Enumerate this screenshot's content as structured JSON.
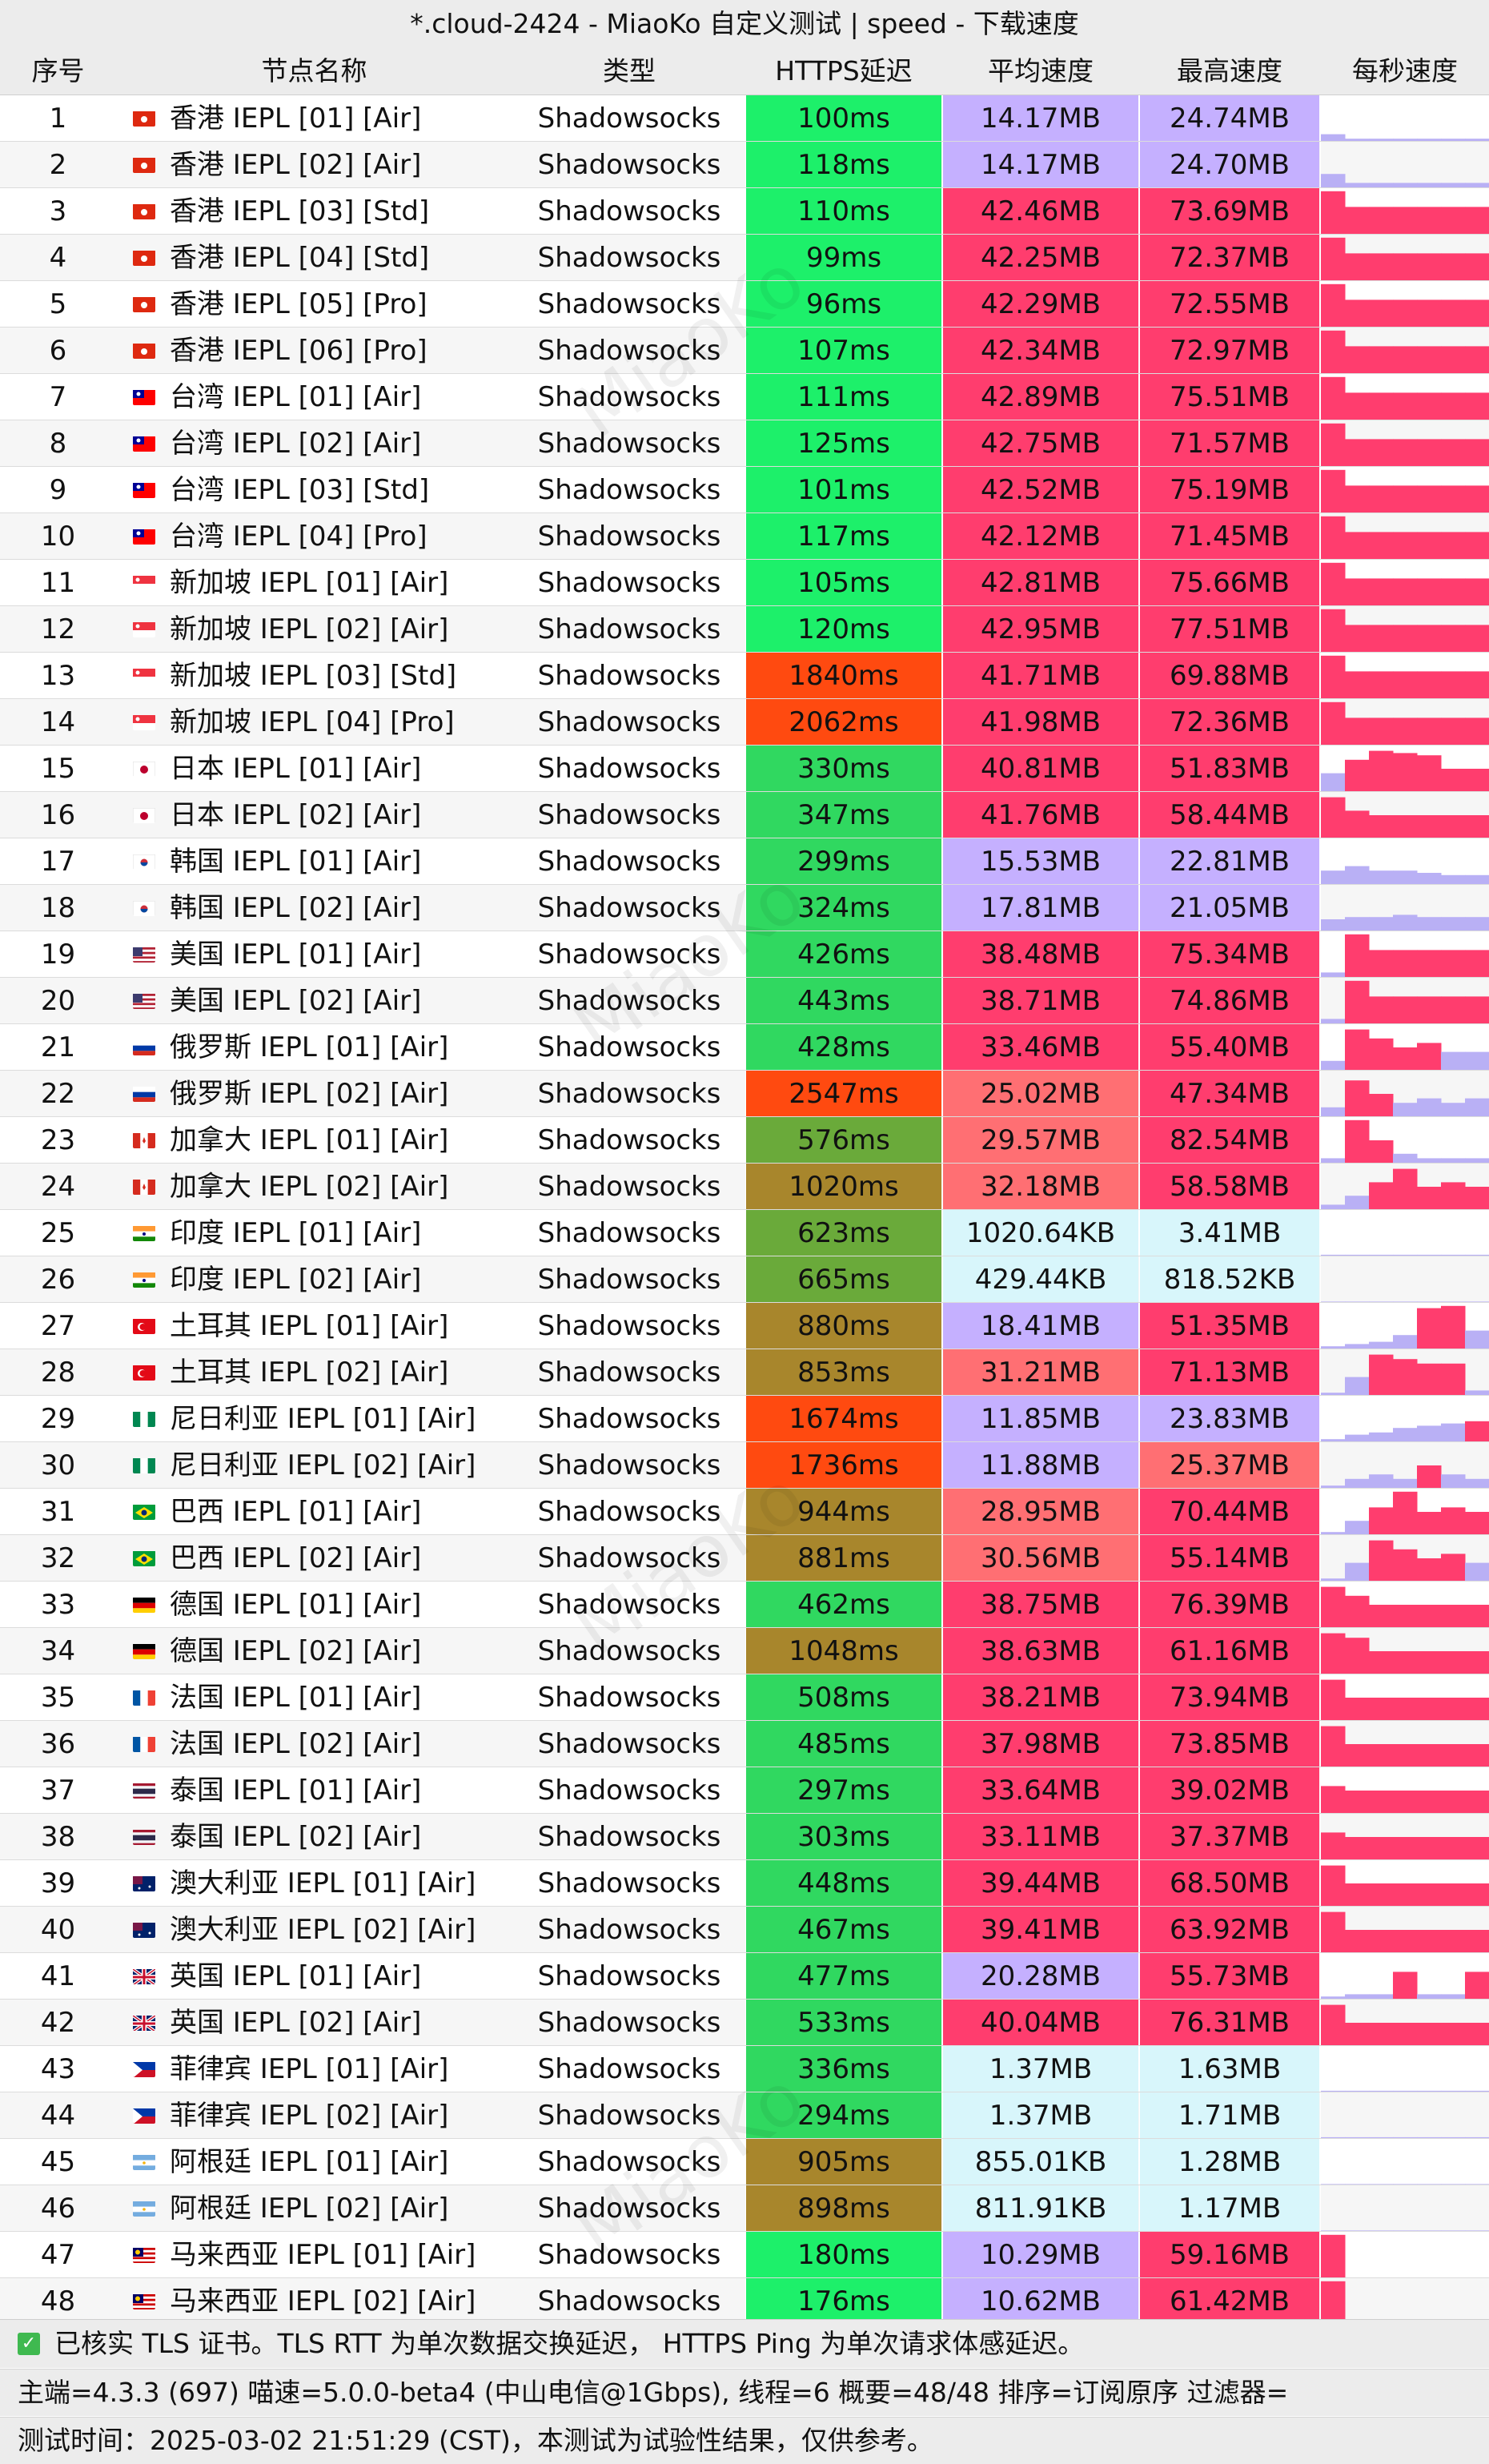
{
  "title": "*.cloud-2424 - MiaoKo 自定义测试 | speed - 下载速度",
  "columns": {
    "index": "序号",
    "name": "节点名称",
    "type": "类型",
    "latency": "HTTPS延迟",
    "avg": "平均速度",
    "max": "最高速度",
    "per_second": "每秒速度"
  },
  "watermark": "MiaoKo",
  "rows": [
    {
      "idx": "1",
      "flag": "hk",
      "name": "香港 IEPL [01] [Air]",
      "type": "Shadowsocks",
      "latency": "100ms",
      "avg": "14.17MB",
      "max": "24.74MB",
      "spark": [
        0.15,
        0.05,
        0.05,
        0.05,
        0.05,
        0.05,
        0.05
      ]
    },
    {
      "idx": "2",
      "flag": "hk",
      "name": "香港 IEPL [02] [Air]",
      "type": "Shadowsocks",
      "latency": "118ms",
      "avg": "14.17MB",
      "max": "24.70MB",
      "spark": [
        0.3,
        0.1,
        0.1,
        0.1,
        0.1,
        0.1,
        0.1
      ]
    },
    {
      "idx": "3",
      "flag": "hk",
      "name": "香港 IEPL [03] [Std]",
      "type": "Shadowsocks",
      "latency": "110ms",
      "avg": "42.46MB",
      "max": "73.69MB",
      "spark": [
        0.95,
        0.6,
        0.6,
        0.6,
        0.6,
        0.6,
        0.6
      ]
    },
    {
      "idx": "4",
      "flag": "hk",
      "name": "香港 IEPL [04] [Std]",
      "type": "Shadowsocks",
      "latency": "99ms",
      "avg": "42.25MB",
      "max": "72.37MB",
      "spark": [
        0.95,
        0.6,
        0.6,
        0.6,
        0.6,
        0.6,
        0.6
      ]
    },
    {
      "idx": "5",
      "flag": "hk",
      "name": "香港 IEPL [05] [Pro]",
      "type": "Shadowsocks",
      "latency": "96ms",
      "avg": "42.29MB",
      "max": "72.55MB",
      "spark": [
        0.95,
        0.6,
        0.6,
        0.6,
        0.6,
        0.6,
        0.6
      ]
    },
    {
      "idx": "6",
      "flag": "hk",
      "name": "香港 IEPL [06] [Pro]",
      "type": "Shadowsocks",
      "latency": "107ms",
      "avg": "42.34MB",
      "max": "72.97MB",
      "spark": [
        0.95,
        0.6,
        0.6,
        0.6,
        0.6,
        0.6,
        0.6
      ]
    },
    {
      "idx": "7",
      "flag": "tw",
      "name": "台湾 IEPL [01] [Air]",
      "type": "Shadowsocks",
      "latency": "111ms",
      "avg": "42.89MB",
      "max": "75.51MB",
      "spark": [
        0.95,
        0.6,
        0.6,
        0.6,
        0.6,
        0.6,
        0.6
      ]
    },
    {
      "idx": "8",
      "flag": "tw",
      "name": "台湾 IEPL [02] [Air]",
      "type": "Shadowsocks",
      "latency": "125ms",
      "avg": "42.75MB",
      "max": "71.57MB",
      "spark": [
        0.95,
        0.6,
        0.6,
        0.6,
        0.6,
        0.6,
        0.6
      ]
    },
    {
      "idx": "9",
      "flag": "tw",
      "name": "台湾 IEPL [03] [Std]",
      "type": "Shadowsocks",
      "latency": "101ms",
      "avg": "42.52MB",
      "max": "75.19MB",
      "spark": [
        0.95,
        0.6,
        0.6,
        0.6,
        0.6,
        0.6,
        0.6
      ]
    },
    {
      "idx": "10",
      "flag": "tw",
      "name": "台湾 IEPL [04] [Pro]",
      "type": "Shadowsocks",
      "latency": "117ms",
      "avg": "42.12MB",
      "max": "71.45MB",
      "spark": [
        0.95,
        0.6,
        0.6,
        0.6,
        0.6,
        0.6,
        0.6
      ]
    },
    {
      "idx": "11",
      "flag": "sg",
      "name": "新加坡 IEPL [01] [Air]",
      "type": "Shadowsocks",
      "latency": "105ms",
      "avg": "42.81MB",
      "max": "75.66MB",
      "spark": [
        0.95,
        0.6,
        0.6,
        0.6,
        0.6,
        0.6,
        0.6
      ]
    },
    {
      "idx": "12",
      "flag": "sg",
      "name": "新加坡 IEPL [02] [Air]",
      "type": "Shadowsocks",
      "latency": "120ms",
      "avg": "42.95MB",
      "max": "77.51MB",
      "spark": [
        0.95,
        0.6,
        0.6,
        0.6,
        0.6,
        0.6,
        0.6
      ]
    },
    {
      "idx": "13",
      "flag": "sg",
      "name": "新加坡 IEPL [03] [Std]",
      "type": "Shadowsocks",
      "latency": "1840ms",
      "avg": "41.71MB",
      "max": "69.88MB",
      "spark": [
        0.95,
        0.6,
        0.6,
        0.6,
        0.6,
        0.6,
        0.6
      ]
    },
    {
      "idx": "14",
      "flag": "sg",
      "name": "新加坡 IEPL [04] [Pro]",
      "type": "Shadowsocks",
      "latency": "2062ms",
      "avg": "41.98MB",
      "max": "72.36MB",
      "spark": [
        0.95,
        0.6,
        0.6,
        0.6,
        0.6,
        0.6,
        0.6
      ]
    },
    {
      "idx": "15",
      "flag": "jp",
      "name": "日本 IEPL [01] [Air]",
      "type": "Shadowsocks",
      "latency": "330ms",
      "avg": "40.81MB",
      "max": "51.83MB",
      "spark": [
        0.4,
        0.7,
        0.9,
        0.85,
        0.8,
        0.5,
        0.5
      ]
    },
    {
      "idx": "16",
      "flag": "jp",
      "name": "日本 IEPL [02] [Air]",
      "type": "Shadowsocks",
      "latency": "347ms",
      "avg": "41.76MB",
      "max": "58.44MB",
      "spark": [
        0.9,
        0.6,
        0.5,
        0.5,
        0.5,
        0.5,
        0.5
      ]
    },
    {
      "idx": "17",
      "flag": "kr",
      "name": "韩国 IEPL [01] [Air]",
      "type": "Shadowsocks",
      "latency": "299ms",
      "avg": "15.53MB",
      "max": "22.81MB",
      "spark": [
        0.3,
        0.4,
        0.3,
        0.3,
        0.25,
        0.2,
        0.2
      ]
    },
    {
      "idx": "18",
      "flag": "kr",
      "name": "韩国 IEPL [02] [Air]",
      "type": "Shadowsocks",
      "latency": "324ms",
      "avg": "17.81MB",
      "max": "21.05MB",
      "spark": [
        0.25,
        0.3,
        0.3,
        0.35,
        0.3,
        0.3,
        0.3
      ]
    },
    {
      "idx": "19",
      "flag": "us",
      "name": "美国 IEPL [01] [Air]",
      "type": "Shadowsocks",
      "latency": "426ms",
      "avg": "38.48MB",
      "max": "75.34MB",
      "spark": [
        0.1,
        0.95,
        0.6,
        0.6,
        0.6,
        0.6,
        0.6
      ]
    },
    {
      "idx": "20",
      "flag": "us",
      "name": "美国 IEPL [02] [Air]",
      "type": "Shadowsocks",
      "latency": "443ms",
      "avg": "38.71MB",
      "max": "74.86MB",
      "spark": [
        0.1,
        0.95,
        0.6,
        0.6,
        0.6,
        0.6,
        0.6
      ]
    },
    {
      "idx": "21",
      "flag": "ru",
      "name": "俄罗斯 IEPL [01] [Air]",
      "type": "Shadowsocks",
      "latency": "428ms",
      "avg": "33.46MB",
      "max": "55.40MB",
      "spark": [
        0.2,
        0.9,
        0.7,
        0.5,
        0.6,
        0.4,
        0.4
      ]
    },
    {
      "idx": "22",
      "flag": "ru",
      "name": "俄罗斯 IEPL [02] [Air]",
      "type": "Shadowsocks",
      "latency": "2547ms",
      "avg": "25.02MB",
      "max": "47.34MB",
      "spark": [
        0.2,
        0.8,
        0.5,
        0.3,
        0.4,
        0.3,
        0.4
      ]
    },
    {
      "idx": "23",
      "flag": "ca",
      "name": "加拿大 IEPL [01] [Air]",
      "type": "Shadowsocks",
      "latency": "576ms",
      "avg": "29.57MB",
      "max": "82.54MB",
      "spark": [
        0.1,
        0.95,
        0.5,
        0.2,
        0.1,
        0.1,
        0.1
      ]
    },
    {
      "idx": "24",
      "flag": "ca",
      "name": "加拿大 IEPL [02] [Air]",
      "type": "Shadowsocks",
      "latency": "1020ms",
      "avg": "32.18MB",
      "max": "58.58MB",
      "spark": [
        0.1,
        0.3,
        0.6,
        0.9,
        0.5,
        0.6,
        0.5
      ]
    },
    {
      "idx": "25",
      "flag": "in",
      "name": "印度 IEPL [01] [Air]",
      "type": "Shadowsocks",
      "latency": "623ms",
      "avg": "1020.64KB",
      "max": "3.41MB",
      "spark": [
        0.02,
        0.02,
        0.02,
        0.02,
        0.02,
        0.02,
        0.02
      ]
    },
    {
      "idx": "26",
      "flag": "in",
      "name": "印度 IEPL [02] [Air]",
      "type": "Shadowsocks",
      "latency": "665ms",
      "avg": "429.44KB",
      "max": "818.52KB",
      "spark": [
        0.01,
        0.01,
        0.01,
        0.01,
        0.01,
        0.01,
        0.01
      ]
    },
    {
      "idx": "27",
      "flag": "tr",
      "name": "土耳其 IEPL [01] [Air]",
      "type": "Shadowsocks",
      "latency": "880ms",
      "avg": "18.41MB",
      "max": "51.35MB",
      "spark": [
        0.05,
        0.1,
        0.15,
        0.3,
        0.9,
        0.95,
        0.4
      ]
    },
    {
      "idx": "28",
      "flag": "tr",
      "name": "土耳其 IEPL [02] [Air]",
      "type": "Shadowsocks",
      "latency": "853ms",
      "avg": "31.21MB",
      "max": "71.13MB",
      "spark": [
        0.05,
        0.4,
        0.9,
        0.8,
        0.7,
        0.7,
        0.1
      ]
    },
    {
      "idx": "29",
      "flag": "ng",
      "name": "尼日利亚 IEPL [01] [Air]",
      "type": "Shadowsocks",
      "latency": "1674ms",
      "avg": "11.85MB",
      "max": "23.83MB",
      "spark": [
        0.05,
        0.15,
        0.2,
        0.3,
        0.35,
        0.4,
        0.45
      ]
    },
    {
      "idx": "30",
      "flag": "ng",
      "name": "尼日利亚 IEPL [02] [Air]",
      "type": "Shadowsocks",
      "latency": "1736ms",
      "avg": "11.88MB",
      "max": "25.37MB",
      "spark": [
        0.05,
        0.2,
        0.3,
        0.2,
        0.5,
        0.3,
        0.2
      ]
    },
    {
      "idx": "31",
      "flag": "br",
      "name": "巴西 IEPL [01] [Air]",
      "type": "Shadowsocks",
      "latency": "944ms",
      "avg": "28.95MB",
      "max": "70.44MB",
      "spark": [
        0.05,
        0.3,
        0.6,
        0.95,
        0.5,
        0.6,
        0.5
      ]
    },
    {
      "idx": "32",
      "flag": "br",
      "name": "巴西 IEPL [02] [Air]",
      "type": "Shadowsocks",
      "latency": "881ms",
      "avg": "30.56MB",
      "max": "55.14MB",
      "spark": [
        0.05,
        0.4,
        0.9,
        0.7,
        0.5,
        0.6,
        0.4
      ]
    },
    {
      "idx": "33",
      "flag": "de",
      "name": "德国 IEPL [01] [Air]",
      "type": "Shadowsocks",
      "latency": "462ms",
      "avg": "38.75MB",
      "max": "76.39MB",
      "spark": [
        0.9,
        0.7,
        0.5,
        0.5,
        0.5,
        0.5,
        0.5
      ]
    },
    {
      "idx": "34",
      "flag": "de",
      "name": "德国 IEPL [02] [Air]",
      "type": "Shadowsocks",
      "latency": "1048ms",
      "avg": "38.63MB",
      "max": "61.16MB",
      "spark": [
        0.9,
        0.8,
        0.5,
        0.5,
        0.5,
        0.5,
        0.5
      ]
    },
    {
      "idx": "35",
      "flag": "fr",
      "name": "法国 IEPL [01] [Air]",
      "type": "Shadowsocks",
      "latency": "508ms",
      "avg": "38.21MB",
      "max": "73.94MB",
      "spark": [
        0.9,
        0.5,
        0.5,
        0.5,
        0.5,
        0.5,
        0.5
      ]
    },
    {
      "idx": "36",
      "flag": "fr",
      "name": "法国 IEPL [02] [Air]",
      "type": "Shadowsocks",
      "latency": "485ms",
      "avg": "37.98MB",
      "max": "73.85MB",
      "spark": [
        0.9,
        0.5,
        0.5,
        0.5,
        0.5,
        0.5,
        0.5
      ]
    },
    {
      "idx": "37",
      "flag": "th",
      "name": "泰国 IEPL [01] [Air]",
      "type": "Shadowsocks",
      "latency": "297ms",
      "avg": "33.64MB",
      "max": "39.02MB",
      "spark": [
        0.6,
        0.5,
        0.5,
        0.5,
        0.5,
        0.5,
        0.5
      ]
    },
    {
      "idx": "38",
      "flag": "th",
      "name": "泰国 IEPL [02] [Air]",
      "type": "Shadowsocks",
      "latency": "303ms",
      "avg": "33.11MB",
      "max": "37.37MB",
      "spark": [
        0.6,
        0.5,
        0.5,
        0.5,
        0.5,
        0.5,
        0.5
      ]
    },
    {
      "idx": "39",
      "flag": "au",
      "name": "澳大利亚 IEPL [01] [Air]",
      "type": "Shadowsocks",
      "latency": "448ms",
      "avg": "39.44MB",
      "max": "68.50MB",
      "spark": [
        0.9,
        0.5,
        0.5,
        0.5,
        0.5,
        0.5,
        0.5
      ]
    },
    {
      "idx": "40",
      "flag": "au",
      "name": "澳大利亚 IEPL [02] [Air]",
      "type": "Shadowsocks",
      "latency": "467ms",
      "avg": "39.41MB",
      "max": "63.92MB",
      "spark": [
        0.9,
        0.5,
        0.5,
        0.5,
        0.5,
        0.5,
        0.5
      ]
    },
    {
      "idx": "41",
      "flag": "gb",
      "name": "英国 IEPL [01] [Air]",
      "type": "Shadowsocks",
      "latency": "477ms",
      "avg": "20.28MB",
      "max": "55.73MB",
      "spark": [
        0.05,
        0.1,
        0.1,
        0.6,
        0.1,
        0.1,
        0.6
      ]
    },
    {
      "idx": "42",
      "flag": "gb",
      "name": "英国 IEPL [02] [Air]",
      "type": "Shadowsocks",
      "latency": "533ms",
      "avg": "40.04MB",
      "max": "76.31MB",
      "spark": [
        0.9,
        0.5,
        0.5,
        0.5,
        0.5,
        0.5,
        0.5
      ]
    },
    {
      "idx": "43",
      "flag": "ph",
      "name": "菲律宾 IEPL [01] [Air]",
      "type": "Shadowsocks",
      "latency": "336ms",
      "avg": "1.37MB",
      "max": "1.63MB",
      "spark": [
        0.02,
        0.02,
        0.02,
        0.02,
        0.02,
        0.02,
        0.02
      ]
    },
    {
      "idx": "44",
      "flag": "ph",
      "name": "菲律宾 IEPL [02] [Air]",
      "type": "Shadowsocks",
      "latency": "294ms",
      "avg": "1.37MB",
      "max": "1.71MB",
      "spark": [
        0.02,
        0.02,
        0.02,
        0.02,
        0.02,
        0.02,
        0.02
      ]
    },
    {
      "idx": "45",
      "flag": "ar",
      "name": "阿根廷 IEPL [01] [Air]",
      "type": "Shadowsocks",
      "latency": "905ms",
      "avg": "855.01KB",
      "max": "1.28MB",
      "spark": [
        0.01,
        0.01,
        0.01,
        0.01,
        0.01,
        0.01,
        0.01
      ]
    },
    {
      "idx": "46",
      "flag": "ar",
      "name": "阿根廷 IEPL [02] [Air]",
      "type": "Shadowsocks",
      "latency": "898ms",
      "avg": "811.91KB",
      "max": "1.17MB",
      "spark": [
        0.01,
        0.01,
        0.01,
        0.01,
        0.01,
        0.01,
        0.01
      ]
    },
    {
      "idx": "47",
      "flag": "my",
      "name": "马来西亚 IEPL [01] [Air]",
      "type": "Shadowsocks",
      "latency": "180ms",
      "avg": "10.29MB",
      "max": "59.16MB",
      "spark": [
        0.95,
        0.0,
        0.0,
        0.0,
        0.0,
        0.0,
        0.0
      ]
    },
    {
      "idx": "48",
      "flag": "my",
      "name": "马来西亚 IEPL [02] [Air]",
      "type": "Shadowsocks",
      "latency": "176ms",
      "avg": "10.62MB",
      "max": "61.42MB",
      "spark": [
        0.95,
        0.0,
        0.0,
        0.0,
        0.0,
        0.0,
        0.0
      ]
    }
  ],
  "footer": {
    "line1": "已核实 TLS 证书。TLS RTT 为单次数据交换延迟， HTTPS Ping 为单次请求体感延迟。",
    "line2": "主端=4.3.3 (697) 喵速=5.0.0-beta4 (中山电信@1Gbps), 线程=6 概要=48/48 排序=订阅原序 过滤器=",
    "line3": "测试时间：2025-03-02 21:51:29 (CST)，本测试为试验性结果，仅供参考。"
  },
  "colors": {
    "header_bg": "#ececec",
    "latency_fast": "#1df06a",
    "latency_good": "#30d860",
    "latency_mid": "#6aaa3a",
    "latency_slow": "#a8862c",
    "latency_bad": "#ff4a10",
    "speed_high": "#ff3d6e",
    "speed_mid": "#ff6f73",
    "speed_low": "#c5b0ff",
    "speed_verylow": "#d8f6fb",
    "spark_high": "#ff3d6e",
    "spark_low": "#b9b0f5"
  }
}
